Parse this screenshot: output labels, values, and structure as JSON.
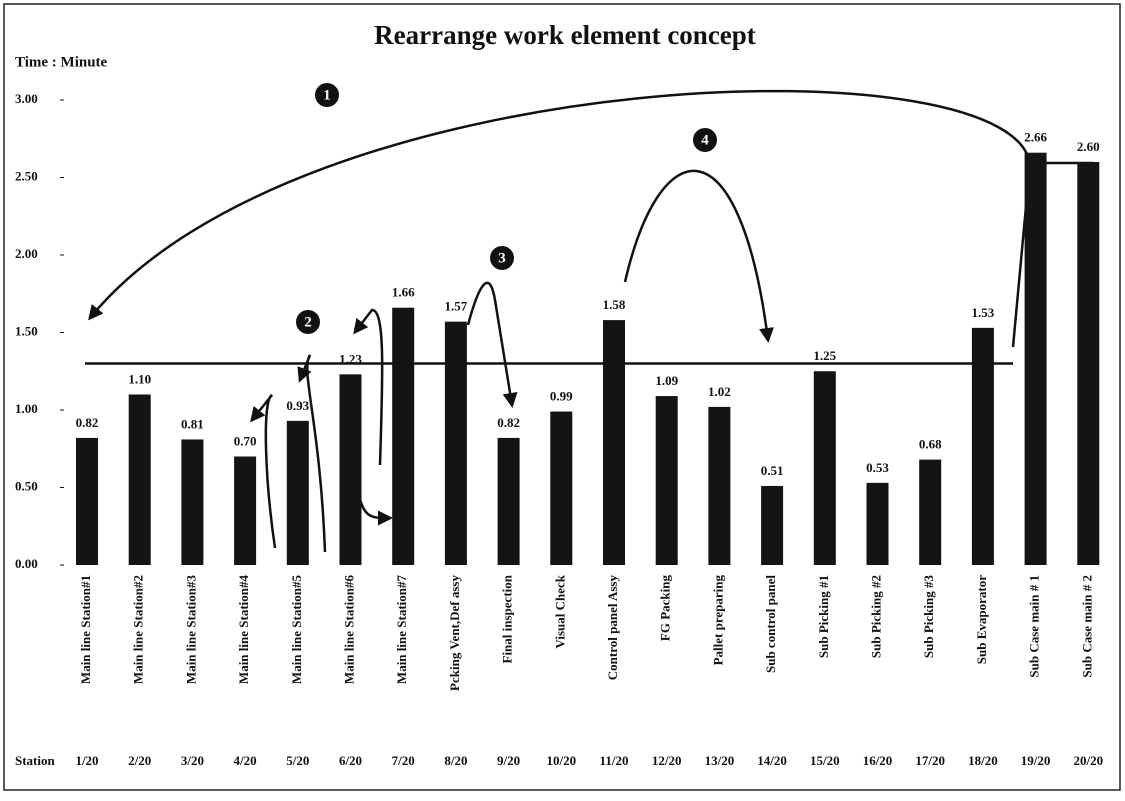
{
  "chart_data": {
    "type": "bar",
    "title": "Rearrange work element concept",
    "y_label": "Time : Minute",
    "categories": [
      "Main line Station#1",
      "Main line Station#2",
      "Main line Station#3",
      "Main line Station#4",
      "Main line Station#5",
      "Main line Station#6",
      "Main line Station#7",
      "Pcking Vent,Def assy",
      "Final inspection",
      "Visual Check",
      "Control panel Assy",
      "FG Packing",
      "Pallet preparing",
      "Sub control panel",
      "Sub Picking #1",
      "Sub Picking #2",
      "Sub Picking #3",
      "Sub Evaporator",
      "Sub Case main # 1",
      "Sub Case main # 2"
    ],
    "station_label": "Station",
    "stations": [
      "1/20",
      "2/20",
      "3/20",
      "4/20",
      "5/20",
      "6/20",
      "7/20",
      "8/20",
      "9/20",
      "10/20",
      "11/20",
      "12/20",
      "13/20",
      "14/20",
      "15/20",
      "16/20",
      "17/20",
      "18/20",
      "19/20",
      "20/20"
    ],
    "values": [
      0.82,
      1.1,
      0.81,
      0.7,
      0.93,
      1.23,
      1.66,
      1.57,
      0.82,
      0.99,
      1.58,
      1.09,
      1.02,
      0.51,
      1.25,
      0.53,
      0.68,
      1.53,
      2.66,
      2.6
    ],
    "value_labels": [
      "0.82",
      "1.10",
      "0.81",
      "0.70",
      "0.93",
      "1.23",
      "1.66",
      "1.57",
      "0.82",
      "0.99",
      "1.58",
      "1.09",
      "1.02",
      "0.51",
      "1.25",
      "0.53",
      "0.68",
      "1.53",
      "2.66",
      "2.60"
    ],
    "color": "#141414",
    "ylim": [
      0,
      3
    ],
    "yticks": [
      {
        "value": 0,
        "label": "0.00"
      },
      {
        "value": 0.5,
        "label": "0.50"
      },
      {
        "value": 1,
        "label": "1.00"
      },
      {
        "value": 1.5,
        "label": "1.50"
      },
      {
        "value": 2,
        "label": "2.00"
      },
      {
        "value": 2.5,
        "label": "2.50"
      },
      {
        "value": 3,
        "label": "3.00"
      }
    ],
    "reference_line": 1.3,
    "annotations": [
      "1",
      "2",
      "3",
      "4"
    ]
  }
}
